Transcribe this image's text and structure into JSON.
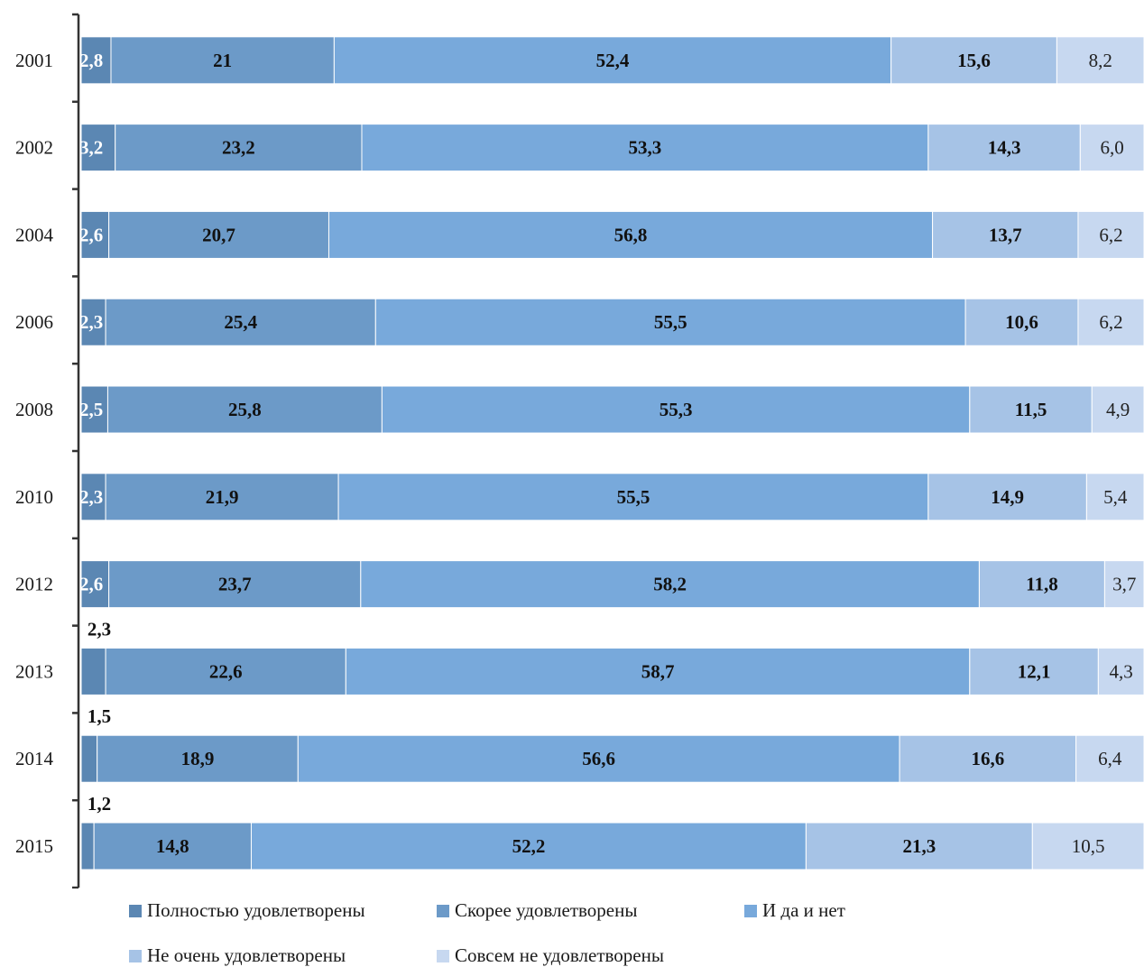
{
  "chart_data": {
    "type": "bar",
    "orientation": "horizontal",
    "stacked": true,
    "percent": true,
    "categories": [
      "2001",
      "2002",
      "2004",
      "2006",
      "2008",
      "2010",
      "2012",
      "2013",
      "2014",
      "2015"
    ],
    "series": [
      {
        "name": "Полностью удовлетворены",
        "color": "#5b87b3",
        "values": [
          2.8,
          3.2,
          2.6,
          2.3,
          2.5,
          2.3,
          2.6,
          2.3,
          1.5,
          1.2
        ],
        "labels": [
          "2,8",
          "3,2",
          "2,6",
          "2,3",
          "2,5",
          "2,3",
          "2,6",
          "2,3",
          "1,5",
          "1,2"
        ]
      },
      {
        "name": "Скорее удовлетворены",
        "color": "#6c9ac8",
        "values": [
          21,
          23.2,
          20.7,
          25.4,
          25.8,
          21.9,
          23.7,
          22.6,
          18.9,
          14.8
        ],
        "labels": [
          "21",
          "23,2",
          "20,7",
          "25,4",
          "25,8",
          "21,9",
          "23,7",
          "22,6",
          "18,9",
          "14,8"
        ]
      },
      {
        "name": "И да и нет",
        "color": "#78a9db",
        "values": [
          52.4,
          53.3,
          56.8,
          55.5,
          55.3,
          55.5,
          58.2,
          58.7,
          56.6,
          52.2
        ],
        "labels": [
          "52,4",
          "53,3",
          "56,8",
          "55,5",
          "55,3",
          "55,5",
          "58,2",
          "58,7",
          "56,6",
          "52,2"
        ]
      },
      {
        "name": "Не очень удовлетворены",
        "color": "#a6c3e6",
        "values": [
          15.6,
          14.3,
          13.7,
          10.6,
          11.5,
          14.9,
          11.8,
          12.1,
          16.6,
          21.3
        ],
        "labels": [
          "15,6",
          "14,3",
          "13,7",
          "10,6",
          "11,5",
          "14,9",
          "11,8",
          "12,1",
          "16,6",
          "21,3"
        ]
      },
      {
        "name": "Совсем не удовлетворены",
        "color": "#c7d8f0",
        "values": [
          8.2,
          6.0,
          6.2,
          6.2,
          4.9,
          5.4,
          3.7,
          4.3,
          6.4,
          10.5
        ],
        "labels": [
          "8,2",
          "6,0",
          "6,2",
          "6,2",
          "4,9",
          "5,4",
          "3,7",
          "4,3",
          "6,4",
          "10,5"
        ]
      }
    ],
    "legend_position": "bottom",
    "grid": false
  },
  "legend": {
    "items": [
      {
        "label": "Полностью удовлетворены",
        "color": "#5b87b3"
      },
      {
        "label": "Скорее удовлетворены",
        "color": "#6c9ac8"
      },
      {
        "label": "И да и нет",
        "color": "#78a9db"
      },
      {
        "label": "Не очень удовлетворены",
        "color": "#a6c3e6"
      },
      {
        "label": "Совсем не удовлетворены",
        "color": "#c7d8f0"
      }
    ]
  }
}
